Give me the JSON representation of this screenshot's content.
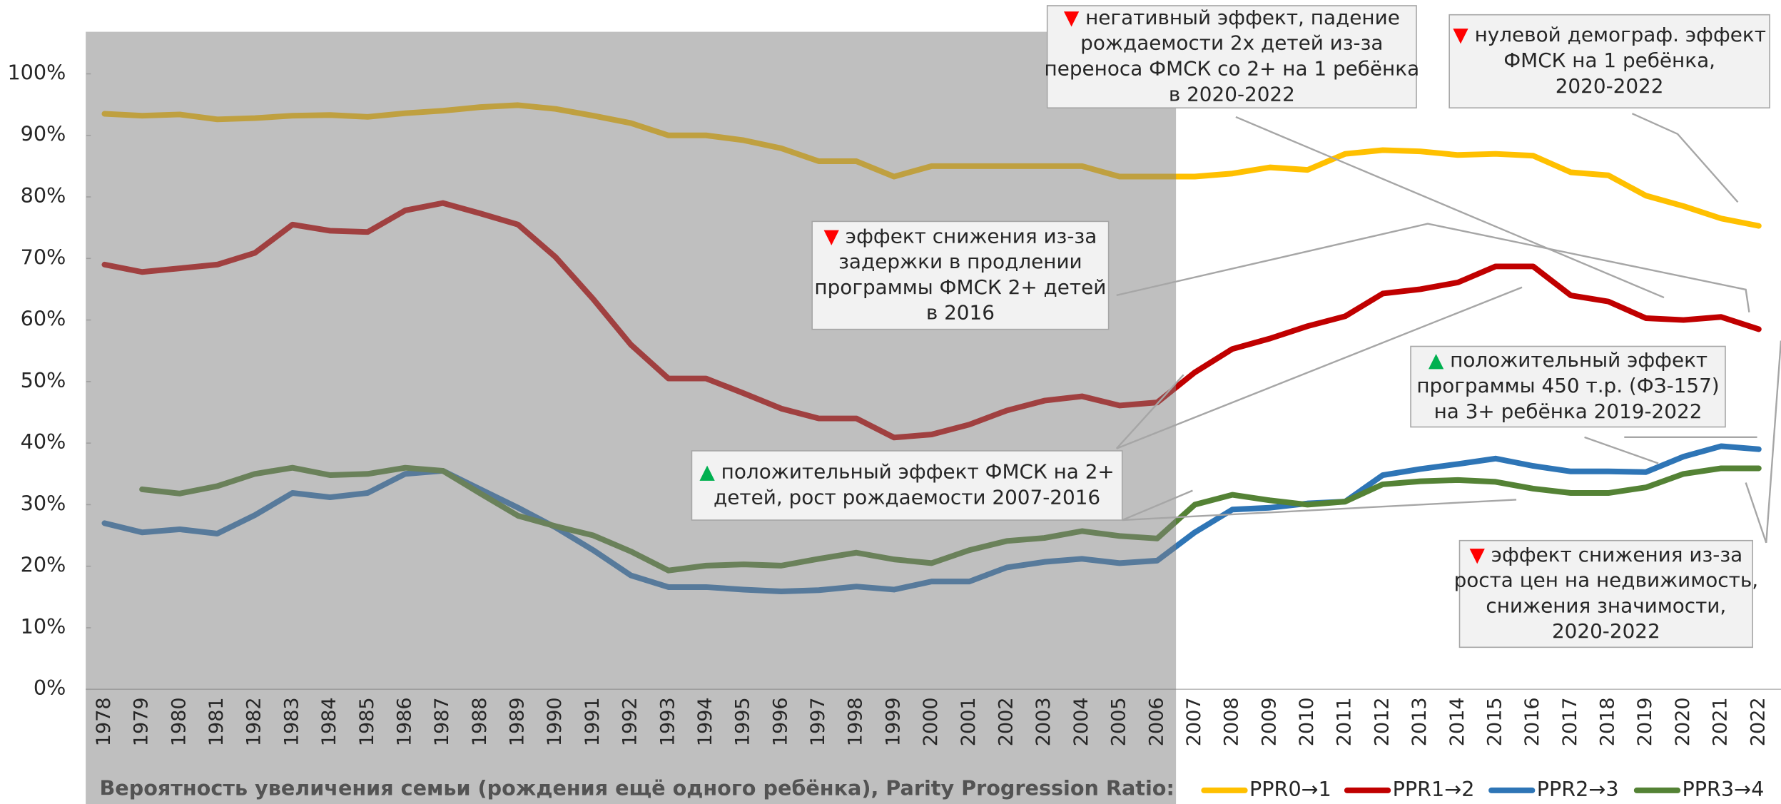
{
  "chart_data": {
    "type": "line",
    "categories": [
      "1978",
      "1979",
      "1980",
      "1981",
      "1982",
      "1983",
      "1984",
      "1985",
      "1986",
      "1987",
      "1988",
      "1989",
      "1990",
      "1991",
      "1992",
      "1993",
      "1994",
      "1995",
      "1996",
      "1997",
      "1998",
      "1999",
      "2000",
      "2001",
      "2002",
      "2003",
      "2004",
      "2005",
      "2006",
      "2007",
      "2008",
      "2009",
      "2010",
      "2011",
      "2012",
      "2013",
      "2014",
      "2015",
      "2016",
      "2017",
      "2018",
      "2019",
      "2020",
      "2021",
      "2022"
    ],
    "series": [
      {
        "name": "PPR0→1",
        "color": "#ffc000",
        "values": [
          93.5,
          93.2,
          93.4,
          92.6,
          92.8,
          93.2,
          93.3,
          93,
          93.6,
          94,
          94.6,
          94.9,
          94.3,
          93.2,
          92,
          90,
          90,
          89.2,
          87.9,
          85.8,
          85.8,
          83.3,
          85,
          85,
          85,
          85,
          85,
          83.3,
          83.3,
          83.3,
          83.8,
          84.8,
          84.4,
          87,
          87.6,
          87.4,
          86.8,
          87,
          86.7,
          84,
          83.5,
          80.2,
          78.5,
          76.5,
          75.3
        ]
      },
      {
        "name": "PPR1→2",
        "color": "#c00000",
        "values": [
          69,
          67.8,
          68.4,
          69,
          70.9,
          75.5,
          74.5,
          74.3,
          77.8,
          79,
          77.3,
          75.5,
          70.2,
          63.4,
          56,
          50.5,
          50.5,
          48.1,
          45.6,
          44,
          44,
          40.9,
          41.4,
          43,
          45.3,
          46.9,
          47.6,
          46.1,
          46.6,
          51.5,
          55.3,
          57,
          59,
          60.6,
          64.3,
          65,
          66.1,
          68.7,
          68.7,
          64,
          63,
          60.3,
          60,
          60.5,
          58.5
        ]
      },
      {
        "name": "PPR2→3",
        "color": "#2e75b6",
        "values": [
          27,
          25.5,
          26,
          25.3,
          28.3,
          31.9,
          31.2,
          31.9,
          35,
          35.5,
          32.5,
          29.5,
          26.3,
          22.6,
          18.5,
          16.6,
          16.6,
          16.2,
          15.9,
          16.1,
          16.7,
          16.2,
          17.5,
          17.5,
          19.8,
          20.7,
          21.2,
          20.5,
          20.9,
          25.5,
          29.2,
          29.5,
          30.2,
          30.5,
          34.8,
          35.8,
          36.6,
          37.5,
          36.3,
          35.4,
          35.4,
          35.3,
          37.8,
          39.5,
          39
        ]
      },
      {
        "name": "PPR3→4",
        "color": "#548235",
        "values": [
          null,
          32.5,
          31.8,
          33,
          35,
          36,
          34.8,
          35,
          36,
          35.5,
          31.8,
          28.2,
          26.5,
          25,
          22.4,
          19.3,
          20.1,
          20.3,
          20.1,
          21.2,
          22.2,
          21.1,
          20.5,
          22.6,
          24.1,
          24.6,
          25.7,
          24.9,
          24.5,
          30,
          31.6,
          30.7,
          30,
          30.5,
          33.3,
          33.8,
          34,
          33.7,
          32.6,
          31.9,
          31.9,
          32.8,
          35,
          35.9,
          35.9
        ]
      }
    ],
    "ylim": [
      0,
      100
    ],
    "yticks": [
      {
        "value": 0,
        "label": "0%"
      },
      {
        "value": 10,
        "label": "10%"
      },
      {
        "value": 20,
        "label": "20%"
      },
      {
        "value": 30,
        "label": "30%"
      },
      {
        "value": 40,
        "label": "40%"
      },
      {
        "value": 50,
        "label": "50%"
      },
      {
        "value": 60,
        "label": "60%"
      },
      {
        "value": 70,
        "label": "70%"
      },
      {
        "value": 80,
        "label": "80%"
      },
      {
        "value": 90,
        "label": "90%"
      },
      {
        "value": 100,
        "label": "100%"
      }
    ],
    "shaded_range": [
      "1978",
      "2006"
    ],
    "legend_title": "Вероятность увеличения семьи (рождения ещё одного ребёнка), Parity Progression Ratio:",
    "legend": "bottom",
    "annotations": [
      {
        "marker": "▼",
        "marker_color": "#ff0000",
        "lines": [
          "негативный эффект, падение",
          "рождаемости 2х детей из-за",
          "переноса ФМСК со 2+ на 1 ребёнка",
          "в 2020-2022"
        ]
      },
      {
        "marker": "▼",
        "marker_color": "#ff0000",
        "lines": [
          "нулевой демограф. эффект",
          "ФМСК на 1 ребёнка,",
          "2020-2022"
        ]
      },
      {
        "marker": "▼",
        "marker_color": "#ff0000",
        "lines": [
          "эффект снижения из-за",
          "задержки  в продлении",
          "программы ФМСК 2+ детей",
          "в 2016"
        ]
      },
      {
        "marker": "▲",
        "marker_color": "#00b050",
        "lines": [
          "положительный эффект",
          "программы 450 т.р.  (ФЗ-157)",
          "на 3+ ребёнка 2019-2022"
        ]
      },
      {
        "marker": "▲",
        "marker_color": "#00b050",
        "lines": [
          "положительный эффект ФМСК на 2+",
          "детей, рост рождаемости 2007-2016"
        ]
      },
      {
        "marker": "▼",
        "marker_color": "#ff0000",
        "lines": [
          "эффект снижения из-за",
          "роста цен на недвижимость,",
          "снижения значимости,",
          "2020-2022"
        ]
      }
    ]
  }
}
